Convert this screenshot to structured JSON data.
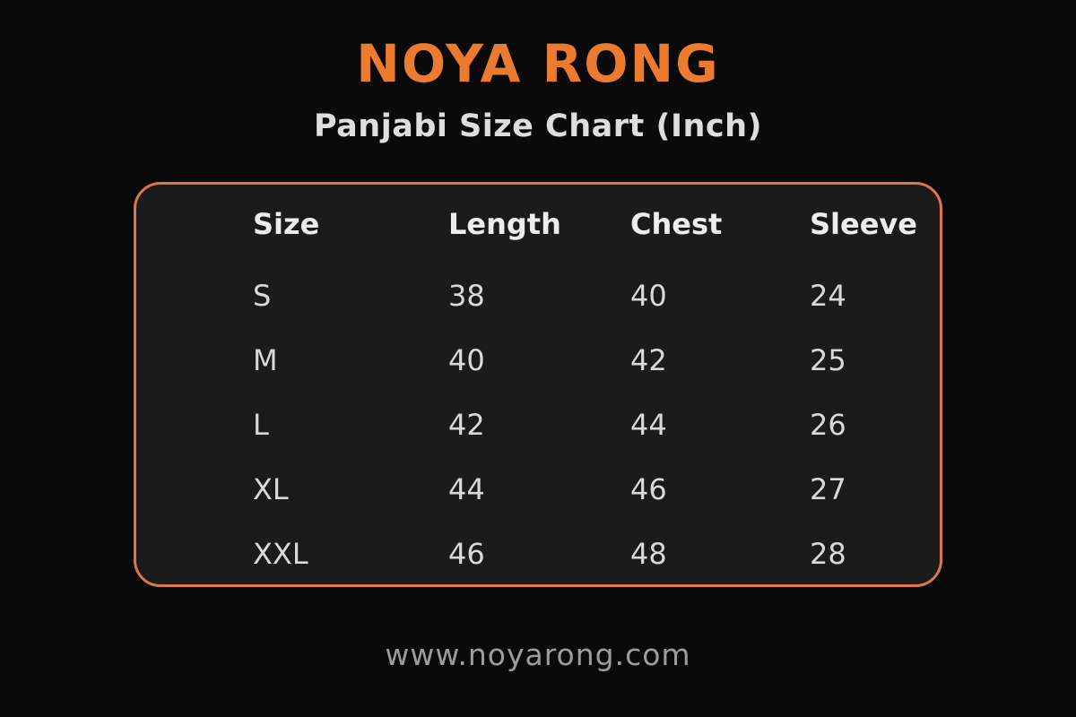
{
  "brand": {
    "name": "NOYA RONG"
  },
  "subtitle": "Panjabi Size Chart (Inch)",
  "website": "www.noyarong.com",
  "colors": {
    "accent_orange": "#ED7B2F",
    "panel_border_orange": "#DB7848",
    "page_background": "#0A0A0A",
    "panel_background": "#1B1B1B",
    "header_text": "#EDEDED",
    "cell_text": "#D9D9D9",
    "footer_text": "#9C9C9C"
  },
  "chart_data": {
    "type": "table",
    "title": "Panjabi Size Chart (Inch)",
    "columns": [
      "Size",
      "Length",
      "Chest",
      "Sleeve"
    ],
    "rows": [
      [
        "S",
        "38",
        "40",
        "24"
      ],
      [
        "M",
        "40",
        "42",
        "25"
      ],
      [
        "L",
        "42",
        "44",
        "26"
      ],
      [
        "XL",
        "44",
        "46",
        "27"
      ],
      [
        "XXL",
        "46",
        "48",
        "28"
      ]
    ],
    "units": "inch",
    "layout_hints": {
      "panel_border": "rounded orange outline",
      "background": "black",
      "text_alignment": "left"
    }
  }
}
